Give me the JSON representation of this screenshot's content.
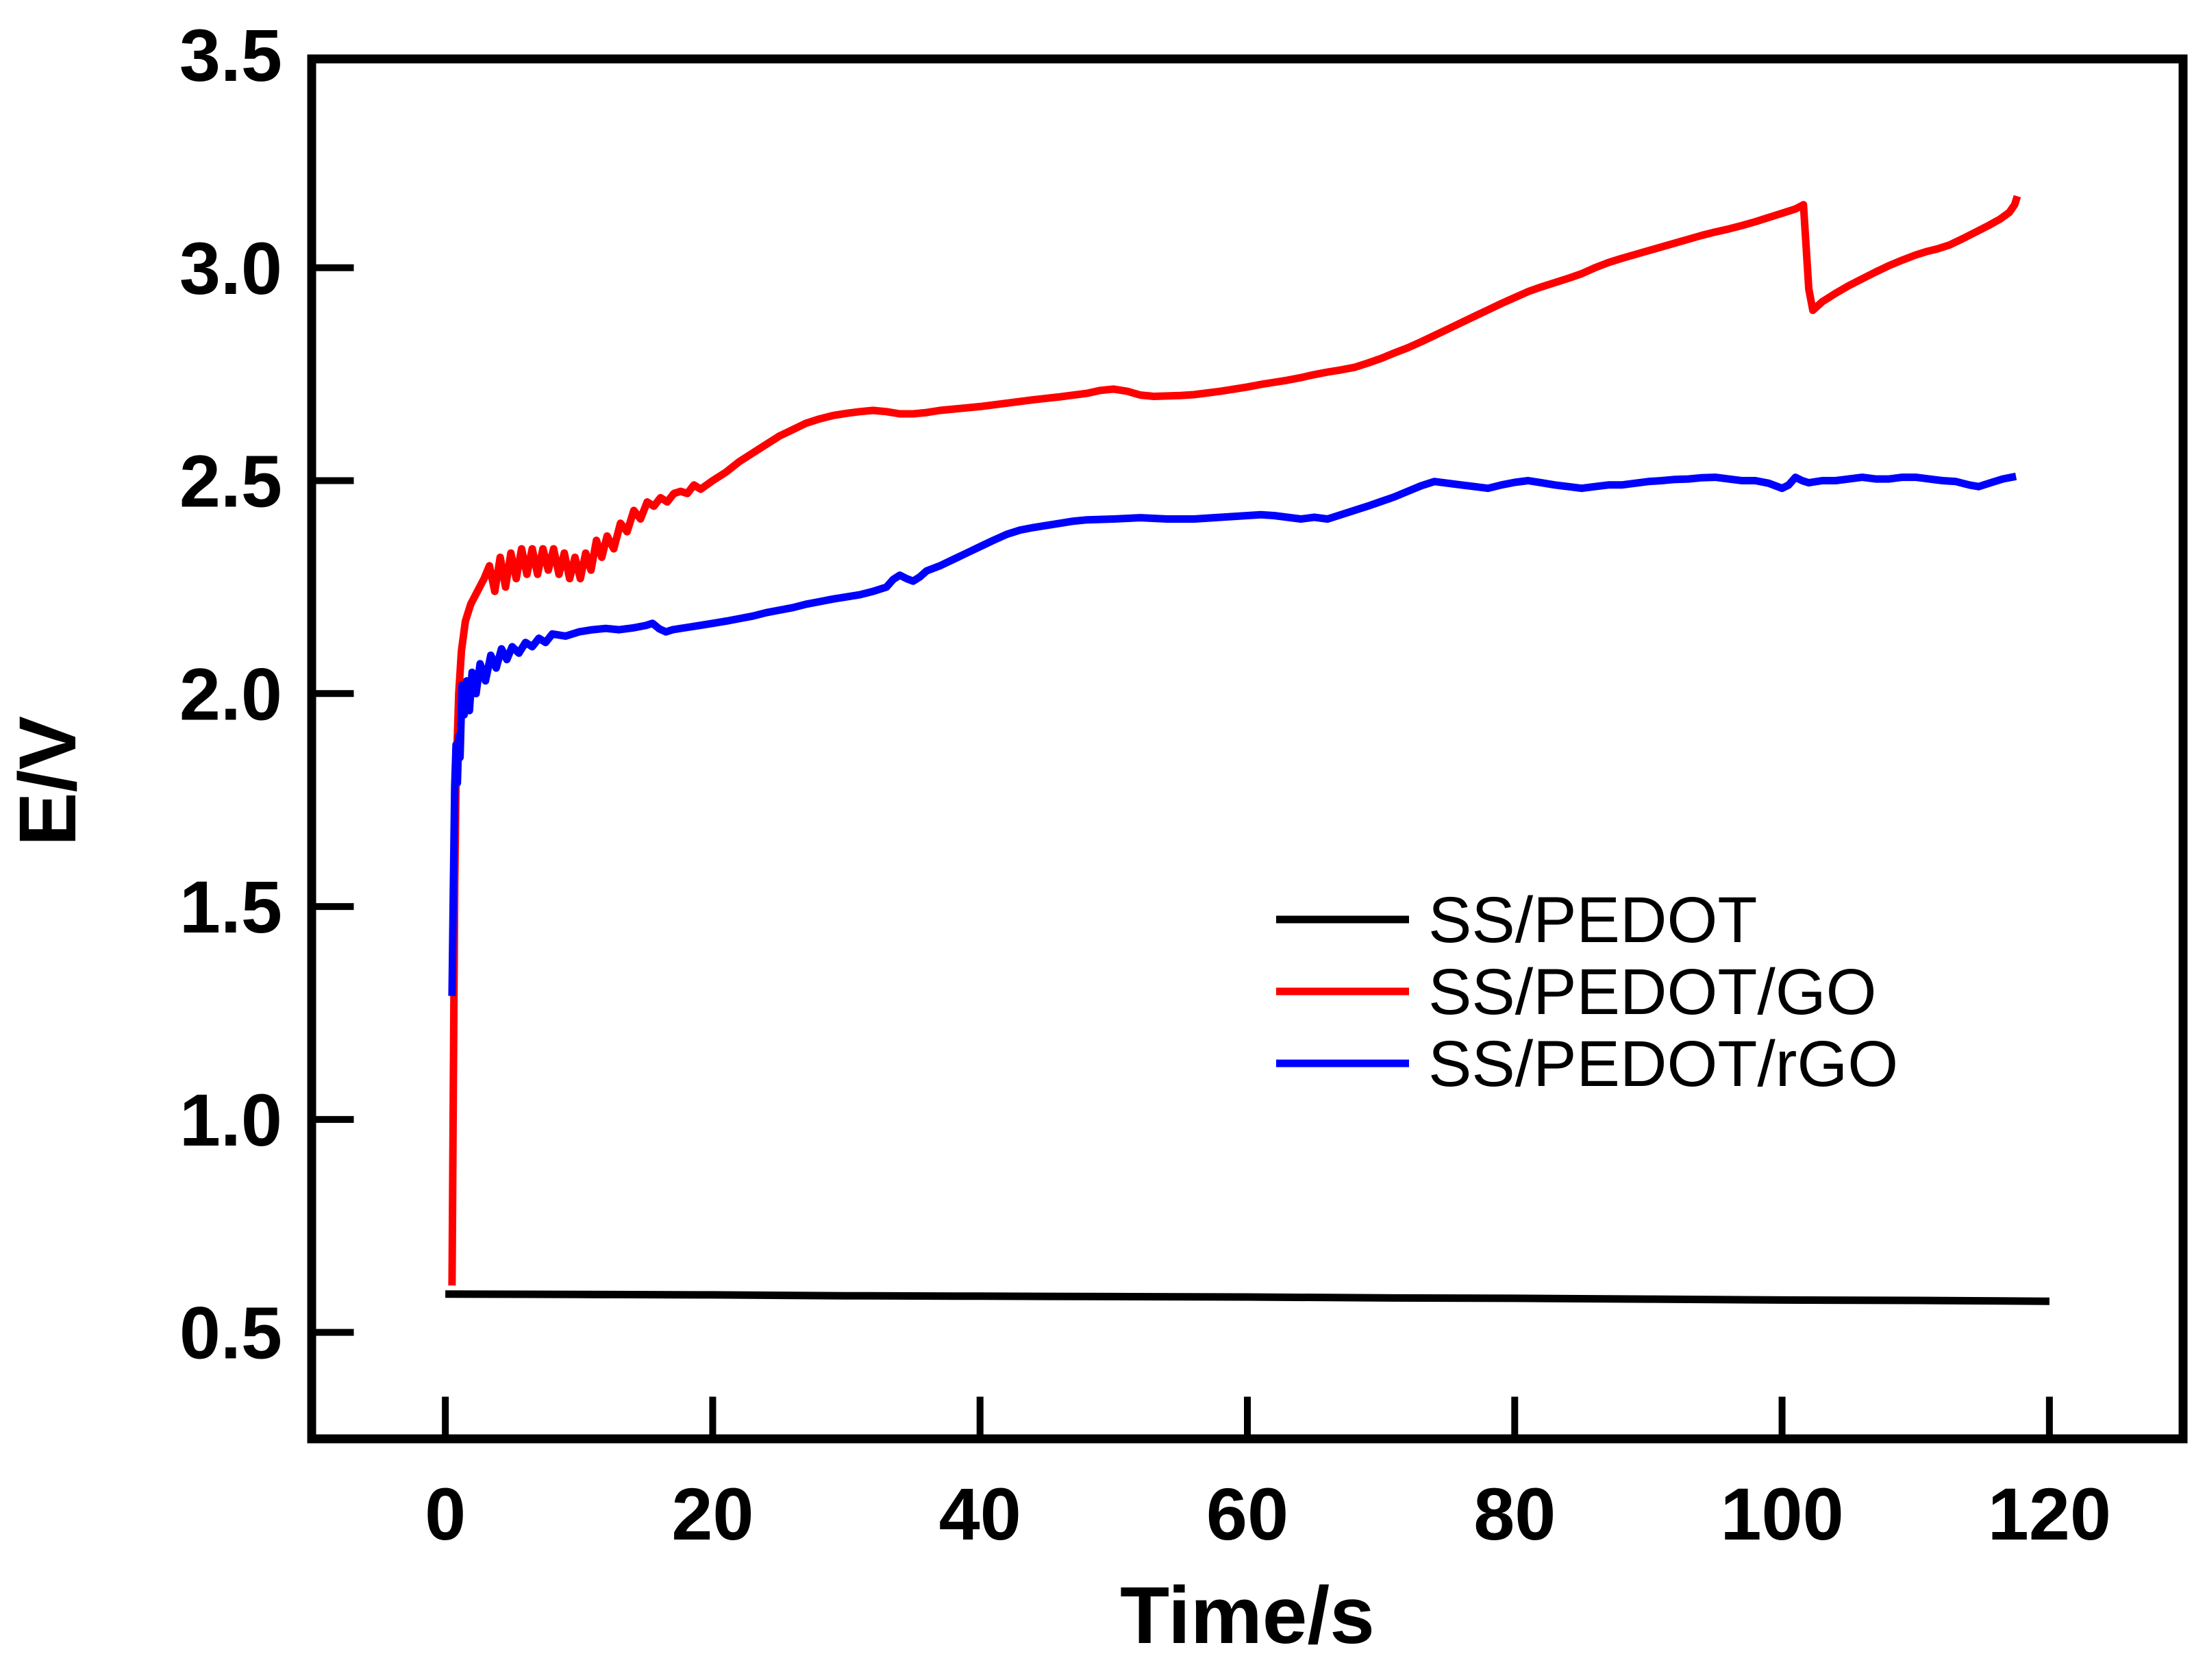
{
  "chart_data": {
    "type": "line",
    "title": "",
    "xlabel": "Time/s",
    "ylabel": "E/V",
    "xlim": [
      -10,
      130
    ],
    "ylim": [
      0.25,
      3.5
    ],
    "grid": false,
    "legend_position": "center-right",
    "x_ticks": [
      {
        "value": 0,
        "label": "0"
      },
      {
        "value": 20,
        "label": "20"
      },
      {
        "value": 40,
        "label": "40"
      },
      {
        "value": 60,
        "label": "60"
      },
      {
        "value": 80,
        "label": "80"
      },
      {
        "value": 100,
        "label": "100"
      },
      {
        "value": 120,
        "label": "120"
      }
    ],
    "y_ticks": [
      {
        "value": 3.5,
        "label": "3.5",
        "tick": false
      },
      {
        "value": 3.0,
        "label": "3.0"
      },
      {
        "value": 2.5,
        "label": "2.5"
      },
      {
        "value": 2.0,
        "label": "2.0"
      },
      {
        "value": 1.5,
        "label": "1.5"
      },
      {
        "value": 1.0,
        "label": "1.0"
      },
      {
        "value": 0.5,
        "label": "0.5"
      }
    ],
    "series": [
      {
        "name": "SS/PEDOT",
        "color": "#000000",
        "points": [
          [
            0,
            0.59
          ],
          [
            10,
            0.589
          ],
          [
            20,
            0.588
          ],
          [
            30,
            0.586
          ],
          [
            40,
            0.585
          ],
          [
            50,
            0.584
          ],
          [
            60,
            0.583
          ],
          [
            70,
            0.581
          ],
          [
            80,
            0.58
          ],
          [
            90,
            0.578
          ],
          [
            100,
            0.576
          ],
          [
            110,
            0.575
          ],
          [
            120,
            0.573
          ]
        ]
      },
      {
        "name": "SS/PEDOT/GO",
        "color": "#fe0000",
        "points": [
          [
            0.5,
            0.61
          ],
          [
            0.6,
            1.1
          ],
          [
            0.7,
            1.55
          ],
          [
            0.8,
            1.8
          ],
          [
            1.0,
            2.0
          ],
          [
            1.2,
            2.1
          ],
          [
            1.5,
            2.17
          ],
          [
            1.9,
            2.21
          ],
          [
            2.4,
            2.24
          ],
          [
            2.9,
            2.27
          ],
          [
            3.3,
            2.3
          ],
          [
            3.7,
            2.24
          ],
          [
            4.1,
            2.32
          ],
          [
            4.5,
            2.25
          ],
          [
            4.9,
            2.33
          ],
          [
            5.3,
            2.27
          ],
          [
            5.7,
            2.34
          ],
          [
            6.1,
            2.28
          ],
          [
            6.5,
            2.34
          ],
          [
            6.9,
            2.28
          ],
          [
            7.3,
            2.34
          ],
          [
            7.7,
            2.29
          ],
          [
            8.1,
            2.34
          ],
          [
            8.5,
            2.28
          ],
          [
            8.9,
            2.33
          ],
          [
            9.3,
            2.27
          ],
          [
            9.7,
            2.32
          ],
          [
            10.1,
            2.27
          ],
          [
            10.5,
            2.33
          ],
          [
            10.9,
            2.29
          ],
          [
            11.3,
            2.36
          ],
          [
            11.7,
            2.32
          ],
          [
            12.1,
            2.37
          ],
          [
            12.6,
            2.34
          ],
          [
            13.1,
            2.4
          ],
          [
            13.6,
            2.38
          ],
          [
            14.1,
            2.43
          ],
          [
            14.6,
            2.41
          ],
          [
            15.1,
            2.45
          ],
          [
            15.6,
            2.44
          ],
          [
            16.1,
            2.46
          ],
          [
            16.6,
            2.45
          ],
          [
            17.1,
            2.47
          ],
          [
            17.6,
            2.475
          ],
          [
            18.1,
            2.47
          ],
          [
            18.6,
            2.49
          ],
          [
            19.1,
            2.48
          ],
          [
            20,
            2.5
          ],
          [
            21,
            2.52
          ],
          [
            22,
            2.545
          ],
          [
            23,
            2.565
          ],
          [
            24,
            2.585
          ],
          [
            25,
            2.605
          ],
          [
            26,
            2.62
          ],
          [
            27,
            2.635
          ],
          [
            28,
            2.645
          ],
          [
            29,
            2.653
          ],
          [
            30,
            2.658
          ],
          [
            31,
            2.662
          ],
          [
            32,
            2.665
          ],
          [
            33,
            2.662
          ],
          [
            34,
            2.657
          ],
          [
            35,
            2.657
          ],
          [
            36,
            2.66
          ],
          [
            37,
            2.665
          ],
          [
            38,
            2.668
          ],
          [
            40,
            2.674
          ],
          [
            42,
            2.682
          ],
          [
            44,
            2.69
          ],
          [
            46,
            2.697
          ],
          [
            48,
            2.705
          ],
          [
            49,
            2.712
          ],
          [
            50,
            2.715
          ],
          [
            51,
            2.71
          ],
          [
            52,
            2.701
          ],
          [
            53,
            2.698
          ],
          [
            54,
            2.699
          ],
          [
            55,
            2.7
          ],
          [
            56,
            2.702
          ],
          [
            57,
            2.706
          ],
          [
            58,
            2.71
          ],
          [
            59,
            2.715
          ],
          [
            60,
            2.72
          ],
          [
            61,
            2.726
          ],
          [
            62,
            2.731
          ],
          [
            63,
            2.736
          ],
          [
            64,
            2.742
          ],
          [
            65,
            2.749
          ],
          [
            66,
            2.755
          ],
          [
            67,
            2.76
          ],
          [
            68,
            2.766
          ],
          [
            69,
            2.776
          ],
          [
            70,
            2.787
          ],
          [
            71,
            2.8
          ],
          [
            72,
            2.812
          ],
          [
            73,
            2.826
          ],
          [
            74,
            2.841
          ],
          [
            75,
            2.856
          ],
          [
            76,
            2.871
          ],
          [
            77,
            2.886
          ],
          [
            78,
            2.901
          ],
          [
            79,
            2.916
          ],
          [
            80,
            2.93
          ],
          [
            81,
            2.944
          ],
          [
            82,
            2.955
          ],
          [
            83,
            2.965
          ],
          [
            84,
            2.975
          ],
          [
            85,
            2.986
          ],
          [
            86,
            3.0
          ],
          [
            87,
            3.012
          ],
          [
            88,
            3.022
          ],
          [
            89,
            3.031
          ],
          [
            90,
            3.04
          ],
          [
            91,
            3.049
          ],
          [
            92,
            3.058
          ],
          [
            93,
            3.067
          ],
          [
            94,
            3.076
          ],
          [
            95,
            3.084
          ],
          [
            96,
            3.091
          ],
          [
            97,
            3.099
          ],
          [
            98,
            3.108
          ],
          [
            99,
            3.118
          ],
          [
            100,
            3.128
          ],
          [
            101,
            3.138
          ],
          [
            101.6,
            3.148
          ],
          [
            102.0,
            2.95
          ],
          [
            102.3,
            2.9
          ],
          [
            103,
            2.92
          ],
          [
            104,
            2.94
          ],
          [
            105,
            2.958
          ],
          [
            106,
            2.974
          ],
          [
            107,
            2.99
          ],
          [
            108,
            3.005
          ],
          [
            109,
            3.018
          ],
          [
            110,
            3.03
          ],
          [
            110.8,
            3.038
          ],
          [
            111.6,
            3.044
          ],
          [
            112.5,
            3.053
          ],
          [
            113.5,
            3.068
          ],
          [
            114.5,
            3.084
          ],
          [
            115.5,
            3.1
          ],
          [
            116.3,
            3.114
          ],
          [
            117.0,
            3.13
          ],
          [
            117.4,
            3.148
          ],
          [
            117.6,
            3.168
          ]
        ]
      },
      {
        "name": "SS/PEDOT/rGO",
        "color": "#0000fe",
        "points": [
          [
            0.5,
            1.29
          ],
          [
            0.6,
            1.55
          ],
          [
            0.7,
            1.78
          ],
          [
            0.8,
            1.88
          ],
          [
            0.9,
            1.79
          ],
          [
            1.0,
            1.9
          ],
          [
            1.1,
            1.85
          ],
          [
            1.25,
            2.02
          ],
          [
            1.4,
            1.95
          ],
          [
            1.6,
            2.03
          ],
          [
            1.8,
            1.96
          ],
          [
            2.0,
            2.05
          ],
          [
            2.3,
            2.0
          ],
          [
            2.6,
            2.07
          ],
          [
            3.0,
            2.03
          ],
          [
            3.4,
            2.09
          ],
          [
            3.8,
            2.06
          ],
          [
            4.2,
            2.105
          ],
          [
            4.6,
            2.08
          ],
          [
            5.0,
            2.11
          ],
          [
            5.5,
            2.095
          ],
          [
            6.0,
            2.12
          ],
          [
            6.5,
            2.11
          ],
          [
            7.0,
            2.13
          ],
          [
            7.5,
            2.12
          ],
          [
            8.0,
            2.14
          ],
          [
            9.0,
            2.135
          ],
          [
            10.0,
            2.145
          ],
          [
            11.0,
            2.15
          ],
          [
            12.0,
            2.153
          ],
          [
            13.0,
            2.15
          ],
          [
            14.0,
            2.154
          ],
          [
            15.0,
            2.16
          ],
          [
            15.5,
            2.165
          ],
          [
            16.0,
            2.152
          ],
          [
            16.5,
            2.145
          ],
          [
            17.0,
            2.15
          ],
          [
            18.0,
            2.155
          ],
          [
            19.0,
            2.16
          ],
          [
            20.0,
            2.165
          ],
          [
            21,
            2.17
          ],
          [
            22,
            2.176
          ],
          [
            23,
            2.182
          ],
          [
            24,
            2.19
          ],
          [
            25,
            2.196
          ],
          [
            26,
            2.202
          ],
          [
            27,
            2.21
          ],
          [
            28,
            2.216
          ],
          [
            29,
            2.222
          ],
          [
            30,
            2.227
          ],
          [
            31,
            2.232
          ],
          [
            32,
            2.24
          ],
          [
            33,
            2.25
          ],
          [
            33.5,
            2.268
          ],
          [
            34,
            2.278
          ],
          [
            34.5,
            2.27
          ],
          [
            35,
            2.264
          ],
          [
            35.5,
            2.274
          ],
          [
            36,
            2.288
          ],
          [
            37,
            2.3
          ],
          [
            38,
            2.315
          ],
          [
            39,
            2.33
          ],
          [
            40,
            2.345
          ],
          [
            41,
            2.36
          ],
          [
            42,
            2.374
          ],
          [
            43,
            2.384
          ],
          [
            44,
            2.39
          ],
          [
            45,
            2.395
          ],
          [
            46,
            2.4
          ],
          [
            47,
            2.405
          ],
          [
            48,
            2.408
          ],
          [
            50,
            2.41
          ],
          [
            52,
            2.413
          ],
          [
            54,
            2.41
          ],
          [
            56,
            2.41
          ],
          [
            58,
            2.414
          ],
          [
            60,
            2.418
          ],
          [
            61,
            2.42
          ],
          [
            62,
            2.418
          ],
          [
            63,
            2.414
          ],
          [
            64,
            2.41
          ],
          [
            65,
            2.414
          ],
          [
            66,
            2.41
          ],
          [
            67,
            2.42
          ],
          [
            68,
            2.43
          ],
          [
            69,
            2.44
          ],
          [
            70,
            2.451
          ],
          [
            71,
            2.462
          ],
          [
            72,
            2.475
          ],
          [
            73,
            2.488
          ],
          [
            74,
            2.498
          ],
          [
            75,
            2.494
          ],
          [
            76,
            2.49
          ],
          [
            77,
            2.486
          ],
          [
            78,
            2.482
          ],
          [
            79,
            2.49
          ],
          [
            80,
            2.496
          ],
          [
            81,
            2.5
          ],
          [
            82,
            2.495
          ],
          [
            83,
            2.49
          ],
          [
            84,
            2.486
          ],
          [
            85,
            2.482
          ],
          [
            86,
            2.486
          ],
          [
            87,
            2.49
          ],
          [
            88,
            2.49
          ],
          [
            89,
            2.494
          ],
          [
            90,
            2.498
          ],
          [
            91,
            2.5
          ],
          [
            92,
            2.503
          ],
          [
            93,
            2.504
          ],
          [
            94,
            2.507
          ],
          [
            95,
            2.508
          ],
          [
            96,
            2.504
          ],
          [
            97,
            2.5
          ],
          [
            98,
            2.5
          ],
          [
            99,
            2.494
          ],
          [
            100,
            2.482
          ],
          [
            100.5,
            2.49
          ],
          [
            101,
            2.508
          ],
          [
            101.5,
            2.5
          ],
          [
            102,
            2.495
          ],
          [
            103,
            2.5
          ],
          [
            104,
            2.5
          ],
          [
            105,
            2.504
          ],
          [
            106,
            2.508
          ],
          [
            107,
            2.504
          ],
          [
            108,
            2.504
          ],
          [
            109,
            2.508
          ],
          [
            110,
            2.508
          ],
          [
            111,
            2.504
          ],
          [
            112,
            2.5
          ],
          [
            113,
            2.498
          ],
          [
            114,
            2.49
          ],
          [
            114.7,
            2.486
          ],
          [
            115.5,
            2.494
          ],
          [
            116.5,
            2.504
          ],
          [
            117.5,
            2.51
          ]
        ]
      }
    ]
  }
}
